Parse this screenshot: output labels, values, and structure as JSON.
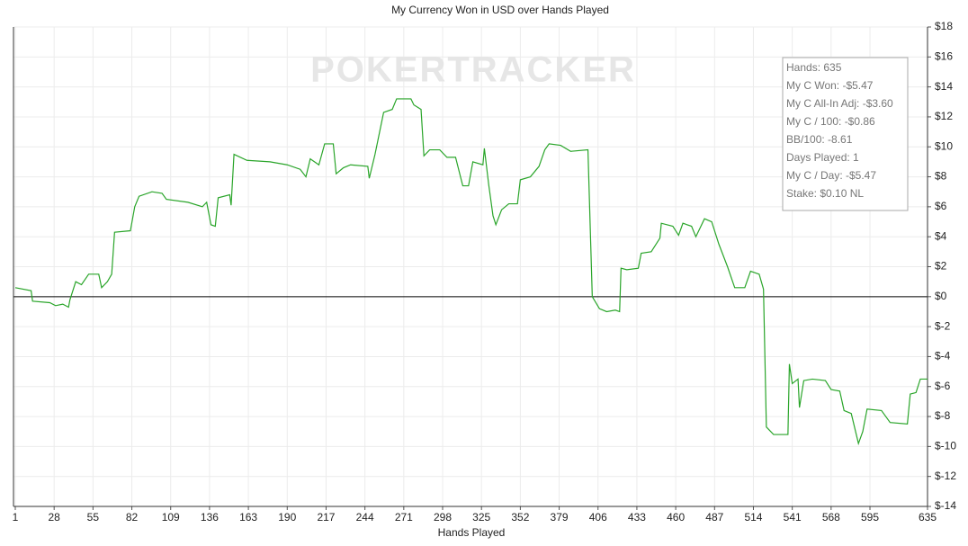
{
  "chart_data": {
    "type": "line",
    "title": "My Currency Won in USD over Hands Played",
    "x_label": "Hands Played",
    "watermark": "POKERTRACKER",
    "grid": true,
    "xlim": [
      1,
      635
    ],
    "ylim": [
      -14,
      18
    ],
    "xticks": [
      1,
      28,
      55,
      82,
      109,
      136,
      163,
      190,
      217,
      244,
      271,
      298,
      325,
      352,
      379,
      406,
      433,
      460,
      487,
      514,
      541,
      568,
      595,
      635
    ],
    "yticks": [
      {
        "value": -14,
        "label": "$-14"
      },
      {
        "value": -12,
        "label": "$-12"
      },
      {
        "value": -10,
        "label": "$-10"
      },
      {
        "value": -8,
        "label": "$-8"
      },
      {
        "value": -6,
        "label": "$-6"
      },
      {
        "value": -4,
        "label": "$-4"
      },
      {
        "value": -2,
        "label": "$-2"
      },
      {
        "value": 0,
        "label": "$0"
      },
      {
        "value": 2,
        "label": "$2"
      },
      {
        "value": 4,
        "label": "$4"
      },
      {
        "value": 6,
        "label": "$6"
      },
      {
        "value": 8,
        "label": "$8"
      },
      {
        "value": 10,
        "label": "$10"
      },
      {
        "value": 12,
        "label": "$12"
      },
      {
        "value": 14,
        "label": "$14"
      },
      {
        "value": 16,
        "label": "$16"
      },
      {
        "value": 18,
        "label": "$18"
      }
    ],
    "color": "#2aa52a",
    "x": [
      1,
      12,
      13,
      25,
      29,
      34,
      38,
      39,
      43,
      47,
      52,
      59,
      61,
      65,
      68,
      70,
      81,
      84,
      87,
      96,
      103,
      106,
      121,
      131,
      134,
      137,
      140,
      142,
      150,
      151,
      153,
      162,
      178,
      190,
      199,
      203,
      206,
      212,
      216,
      222,
      224,
      229,
      234,
      246,
      247,
      251,
      257,
      263,
      266,
      276,
      278,
      283,
      285,
      289,
      296,
      301,
      307,
      312,
      316,
      319,
      326,
      327,
      330,
      333,
      335,
      339,
      344,
      350,
      352,
      359,
      365,
      369,
      372,
      380,
      387,
      399,
      402,
      407,
      412,
      418,
      421,
      422,
      426,
      434,
      436,
      443,
      449,
      450,
      458,
      462,
      465,
      471,
      474,
      480,
      485,
      490,
      496,
      501,
      508,
      512,
      518,
      521,
      523,
      528,
      538,
      539,
      541,
      545,
      546,
      549,
      555,
      564,
      568,
      574,
      577,
      582,
      587,
      590,
      593,
      603,
      609,
      621,
      623,
      627,
      630,
      635
    ],
    "values": [
      0.6,
      0.4,
      -0.3,
      -0.4,
      -0.6,
      -0.5,
      -0.7,
      -0.2,
      1.0,
      0.8,
      1.5,
      1.5,
      0.6,
      1.0,
      1.5,
      4.3,
      4.4,
      6.0,
      6.7,
      7.0,
      6.9,
      6.5,
      6.3,
      6.0,
      6.3,
      4.8,
      4.7,
      6.6,
      6.8,
      6.1,
      9.5,
      9.1,
      9.0,
      8.8,
      8.5,
      8.0,
      9.2,
      8.8,
      10.2,
      10.2,
      8.2,
      8.6,
      8.8,
      8.7,
      7.9,
      9.5,
      12.3,
      12.5,
      13.2,
      13.2,
      12.8,
      12.5,
      9.4,
      9.8,
      9.8,
      9.3,
      9.3,
      7.4,
      7.4,
      9.0,
      8.8,
      9.9,
      7.5,
      5.4,
      4.8,
      5.8,
      6.2,
      6.2,
      7.8,
      8.0,
      8.7,
      9.8,
      10.2,
      10.1,
      9.7,
      9.8,
      0.0,
      -0.8,
      -1.0,
      -0.9,
      -1.0,
      1.9,
      1.8,
      1.9,
      2.9,
      3.0,
      3.9,
      4.9,
      4.7,
      4.1,
      4.9,
      4.7,
      4.0,
      5.2,
      5.0,
      3.5,
      2.0,
      0.6,
      0.6,
      1.7,
      1.5,
      0.5,
      -8.7,
      -9.2,
      -9.2,
      -4.5,
      -5.8,
      -5.5,
      -7.4,
      -5.6,
      -5.5,
      -5.6,
      -6.2,
      -6.3,
      -7.6,
      -7.8,
      -9.8,
      -9.0,
      -7.5,
      -7.6,
      -8.4,
      -8.5,
      -6.5,
      -6.4,
      -5.5,
      -5.5
    ]
  },
  "tooltip": {
    "lines": [
      "Hands: 635",
      "My C Won: -$5.47",
      "My C All-In Adj: -$3.60",
      "My C / 100: -$0.86",
      "BB/100: -8.61",
      "Days Played: 1",
      "My C / Day: -$5.47",
      "Stake: $0.10 NL"
    ]
  }
}
